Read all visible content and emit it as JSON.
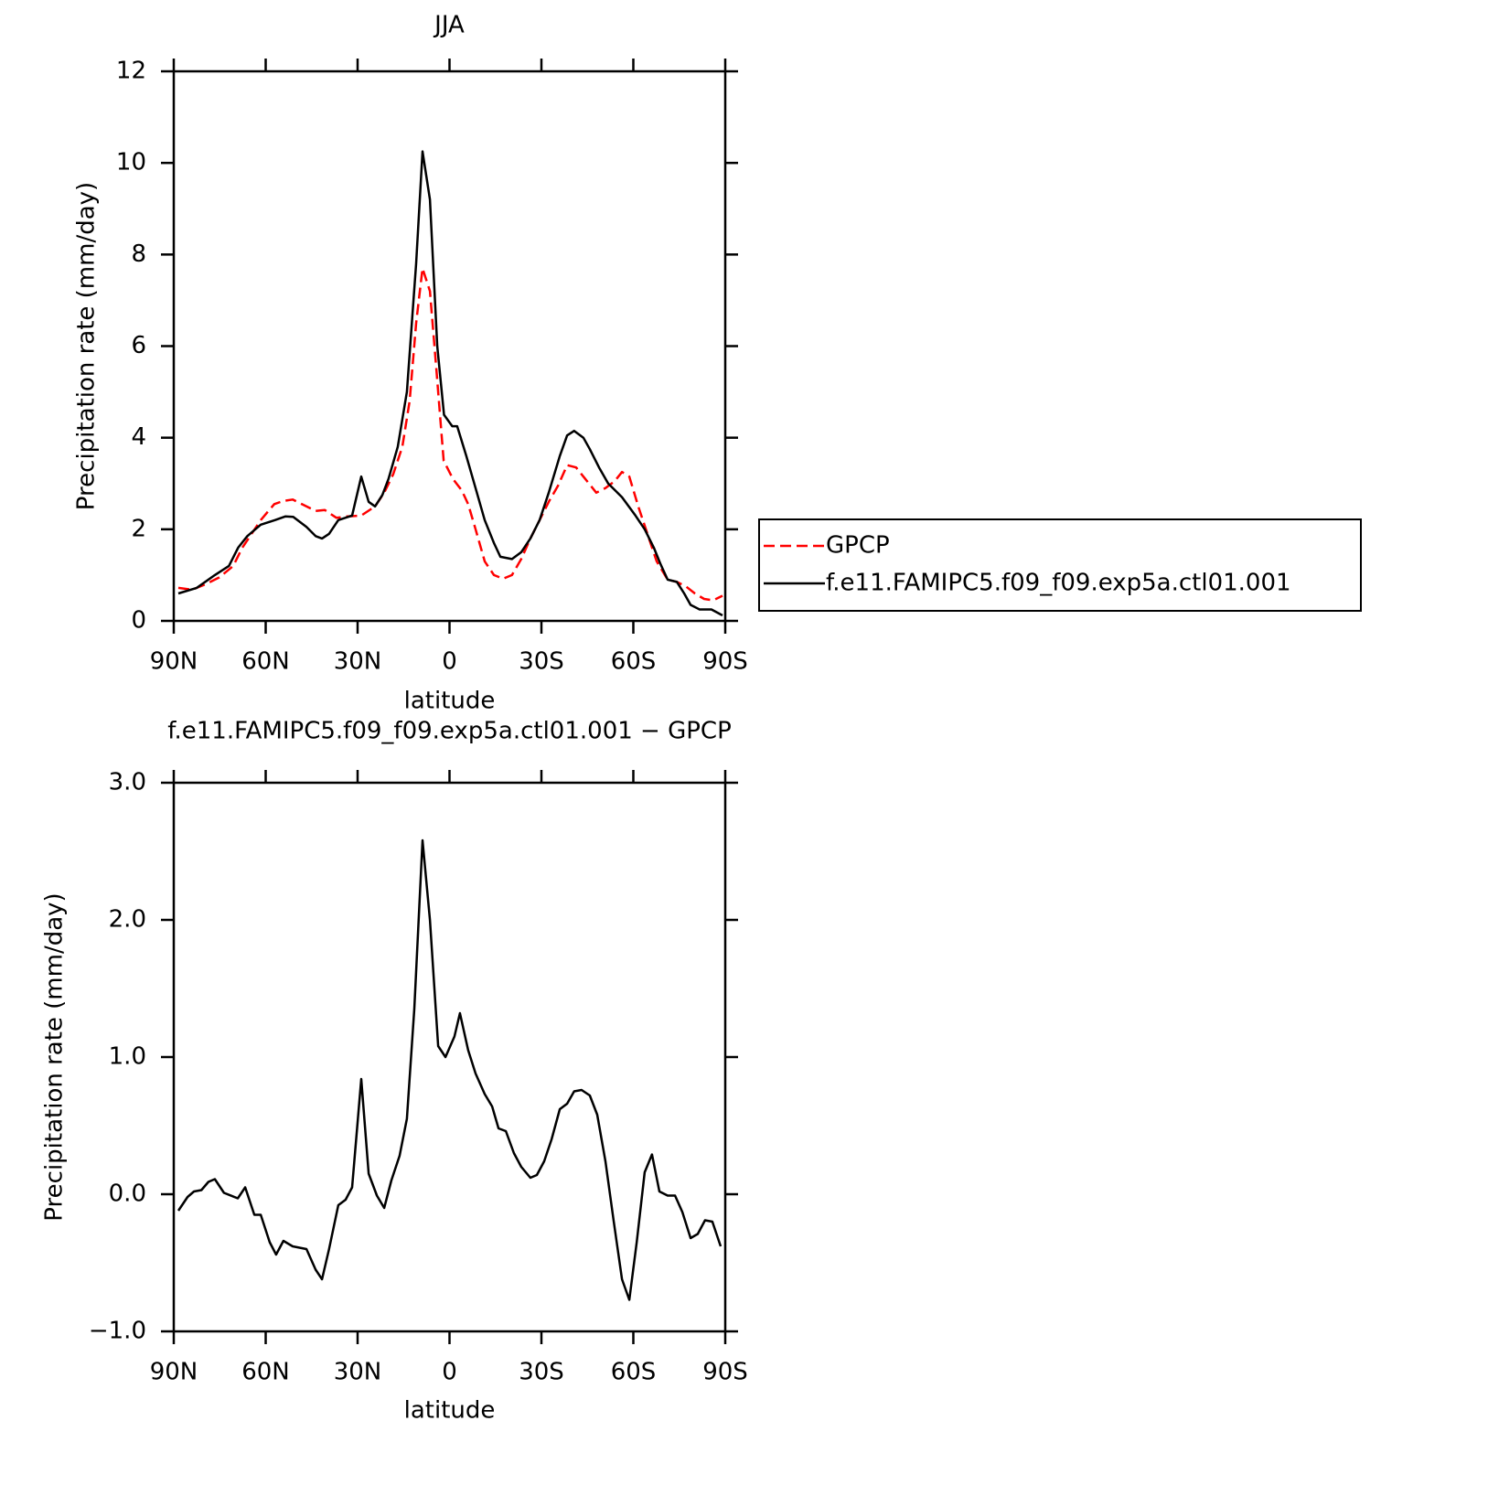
{
  "chart_data": [
    {
      "type": "line",
      "title": "JJA",
      "xlabel": "latitude",
      "ylabel": "Precipitation rate (mm/day)",
      "xlim": [
        90,
        -90
      ],
      "xticks": [
        {
          "value": 90,
          "label": "90N"
        },
        {
          "value": 60,
          "label": "60N"
        },
        {
          "value": 30,
          "label": "30N"
        },
        0,
        {
          "value": -30,
          "label": "30S"
        },
        {
          "value": -60,
          "label": "60S"
        },
        {
          "value": -90,
          "label": "90S"
        }
      ],
      "ylim": [
        0,
        12
      ],
      "yticks": [
        0,
        2,
        4,
        6,
        8,
        10,
        12
      ],
      "legend": "outside right",
      "series": [
        {
          "name": "GPCP",
          "color": "#ff0000",
          "dash": true,
          "x": [
            88.5,
            84,
            79.6,
            75.1,
            70.6,
            67.6,
            64.6,
            61.6,
            57.2,
            54.2,
            51.2,
            48.2,
            43.7,
            40.7,
            36.9,
            33.3,
            28.8,
            24.3,
            21.3,
            18.4,
            15.4,
            13,
            10.9,
            8.8,
            6.4,
            4.3,
            1.9,
            -1.1,
            -4,
            -6.1,
            -8.5,
            -11.5,
            -14.5,
            -17.5,
            -20.4,
            -23.4,
            -26.4,
            -29.4,
            -32.4,
            -35.4,
            -38.4,
            -41.3,
            -44.3,
            -47.9,
            -50.9,
            -53.9,
            -56.3,
            -58.7,
            -61.6,
            -64.6,
            -67.6,
            -71.2,
            -74.2,
            -77.2,
            -80.1,
            -83.1,
            -86.1,
            -89.1
          ],
          "values": [
            0.72,
            0.68,
            0.8,
            0.95,
            1.2,
            1.6,
            1.9,
            2.2,
            2.55,
            2.62,
            2.65,
            2.55,
            2.4,
            2.42,
            2.25,
            2.28,
            2.3,
            2.5,
            2.8,
            3.2,
            3.8,
            4.8,
            6.5,
            7.7,
            7.2,
            5.5,
            3.5,
            3.1,
            2.85,
            2.55,
            2.0,
            1.3,
            1.0,
            0.92,
            1.0,
            1.35,
            1.8,
            2.2,
            2.6,
            2.95,
            3.4,
            3.35,
            3.1,
            2.8,
            2.9,
            3.05,
            3.25,
            3.15,
            2.5,
            1.9,
            1.3,
            0.9,
            0.85,
            0.75,
            0.6,
            0.48,
            0.45,
            0.55
          ]
        },
        {
          "name": "f.e11.FAMIPC5.f09_f09.exp5a.ctl01.001",
          "color": "#000000",
          "dash": false,
          "x": [
            88.5,
            82.5,
            76.6,
            72,
            69,
            66,
            61.6,
            57,
            53.6,
            51,
            46.7,
            43.7,
            41.6,
            39.3,
            36.3,
            31.8,
            28.8,
            26.4,
            24.3,
            21.9,
            19.9,
            16.9,
            13.9,
            10.9,
            8.8,
            6.4,
            4,
            1.8,
            -0.9,
            -2.5,
            -5.5,
            -8.5,
            -11.5,
            -14.5,
            -16.6,
            -20.4,
            -23.4,
            -26.4,
            -29.4,
            -32.4,
            -36,
            -38.4,
            -40.7,
            -43.7,
            -45.8,
            -48.8,
            -51.8,
            -56.3,
            -60.7,
            -63.7,
            -66.7,
            -68.8,
            -71.2,
            -74.2,
            -76.6,
            -78.7,
            -81.6,
            -85.5,
            -89.1
          ],
          "values": [
            0.6,
            0.72,
            1.0,
            1.2,
            1.6,
            1.85,
            2.1,
            2.2,
            2.28,
            2.27,
            2.05,
            1.85,
            1.8,
            1.9,
            2.2,
            2.3,
            3.15,
            2.6,
            2.5,
            2.75,
            3.1,
            3.8,
            5.0,
            7.8,
            10.25,
            9.2,
            6.0,
            4.5,
            4.25,
            4.25,
            3.6,
            2.9,
            2.2,
            1.7,
            1.4,
            1.35,
            1.5,
            1.8,
            2.2,
            2.8,
            3.6,
            4.05,
            4.15,
            4.0,
            3.75,
            3.35,
            3.0,
            2.7,
            2.3,
            2.0,
            1.6,
            1.25,
            0.9,
            0.85,
            0.6,
            0.35,
            0.25,
            0.25,
            0.12
          ]
        }
      ]
    },
    {
      "type": "line",
      "title": "f.e11.FAMIPC5.f09_f09.exp5a.ctl01.001 − GPCP",
      "xlabel": "latitude",
      "ylabel": "Precipitation rate (mm/day)",
      "xlim": [
        90,
        -90
      ],
      "xticks": [
        {
          "value": 90,
          "label": "90N"
        },
        {
          "value": 60,
          "label": "60N"
        },
        {
          "value": 30,
          "label": "30N"
        },
        0,
        {
          "value": -30,
          "label": "30S"
        },
        {
          "value": -60,
          "label": "60S"
        },
        {
          "value": -90,
          "label": "90S"
        }
      ],
      "ylim": [
        -1,
        3
      ],
      "yticks": [
        {
          "value": -1,
          "label": "−1.0"
        },
        {
          "value": 0,
          "label": "0.0"
        },
        {
          "value": 1,
          "label": "1.0"
        },
        {
          "value": 2,
          "label": "2.0"
        },
        {
          "value": 3,
          "label": "3.0"
        }
      ],
      "series": [
        {
          "color": "#000000",
          "dash": false,
          "x": [
            88.5,
            85.5,
            83.4,
            81,
            78.7,
            76.6,
            73.6,
            69.1,
            66.7,
            63.7,
            61.6,
            58.7,
            56.6,
            54.2,
            51.2,
            46.7,
            43.7,
            41.6,
            39.3,
            36.3,
            33.9,
            31.8,
            28.8,
            26.4,
            23.7,
            21.3,
            19,
            16.3,
            13.9,
            11.5,
            8.8,
            6.4,
            3.7,
            1.3,
            -1.6,
            -3.4,
            -6.1,
            -8.5,
            -11.5,
            -13.9,
            -16,
            -18.4,
            -21,
            -23.4,
            -26.4,
            -28.5,
            -30.9,
            -33.3,
            -36,
            -38.4,
            -40.7,
            -43.1,
            -45.8,
            -48.2,
            -50.9,
            -53.6,
            -56.3,
            -58.7,
            -61.1,
            -63.7,
            -66.1,
            -68.5,
            -71.2,
            -73.6,
            -76,
            -78.7,
            -81,
            -83.4,
            -85.8,
            -88.5
          ],
          "values": [
            -0.12,
            -0.02,
            0.02,
            0.03,
            0.09,
            0.11,
            0.01,
            -0.03,
            0.05,
            -0.15,
            -0.15,
            -0.35,
            -0.44,
            -0.34,
            -0.38,
            -0.4,
            -0.55,
            -0.62,
            -0.4,
            -0.08,
            -0.04,
            0.05,
            0.84,
            0.15,
            -0.01,
            -0.1,
            0.1,
            0.28,
            0.55,
            1.35,
            2.58,
            2.0,
            1.08,
            1.0,
            1.15,
            1.32,
            1.05,
            0.88,
            0.73,
            0.64,
            0.48,
            0.46,
            0.3,
            0.2,
            0.12,
            0.14,
            0.24,
            0.4,
            0.62,
            0.66,
            0.75,
            0.76,
            0.72,
            0.58,
            0.24,
            -0.2,
            -0.62,
            -0.77,
            -0.35,
            0.16,
            0.29,
            0.02,
            -0.01,
            -0.01,
            -0.13,
            -0.32,
            -0.29,
            -0.19,
            -0.2,
            -0.38
          ]
        }
      ]
    }
  ]
}
